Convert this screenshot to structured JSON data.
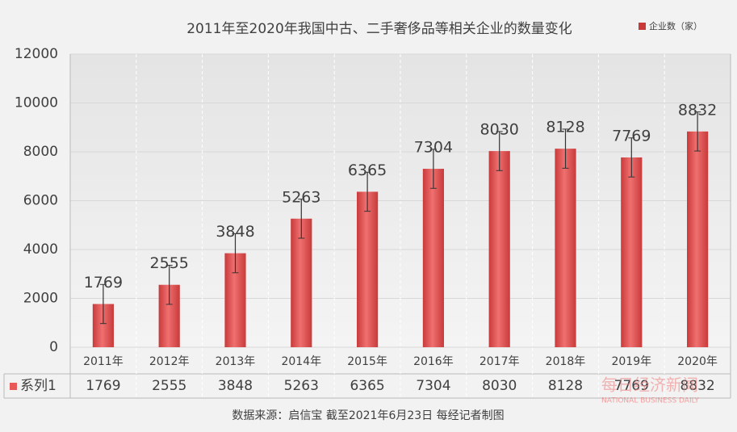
{
  "chart_data": {
    "type": "bar",
    "title": "2011年至2020年我国中古、二手奢侈品等相关企业的数量变化",
    "categories": [
      "2011年",
      "2012年",
      "2013年",
      "2014年",
      "2015年",
      "2016年",
      "2017年",
      "2018年",
      "2019年",
      "2020年"
    ],
    "series": [
      {
        "name": "企业数（家）",
        "color": "#e85a5a",
        "values": [
          1769,
          2555,
          3848,
          5263,
          6365,
          7304,
          8030,
          8128,
          7769,
          8832
        ],
        "error": 800
      }
    ],
    "table_label": "系列1",
    "ylim": [
      0,
      12000
    ],
    "yticks": [
      0,
      2000,
      4000,
      6000,
      8000,
      10000,
      12000
    ],
    "source": "数据来源：启信宝  截至2021年6月23日  每经记者制图",
    "watermark": {
      "cn": "每日经济新闻",
      "en": "NATIONAL BUSINESS DAILY"
    }
  }
}
